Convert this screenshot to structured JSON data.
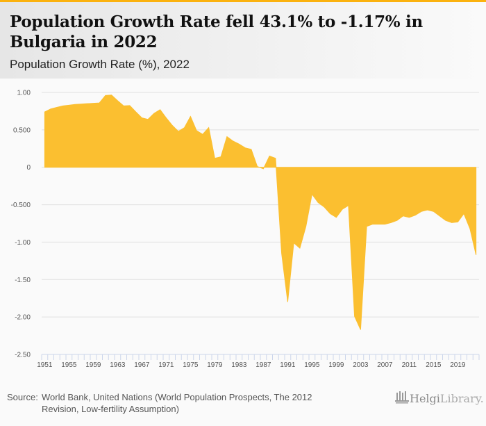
{
  "header": {
    "title": "Population Growth Rate fell 43.1% to -1.17% in Bulgaria in 2022",
    "subtitle": "Population Growth Rate (%), 2022"
  },
  "colors": {
    "accent": "#fbb20f",
    "area_fill": "#fbbf30",
    "grid": "#e0e0e0",
    "axis": "#ccd6eb"
  },
  "footer": {
    "source_label": "Source:",
    "source_text": "World Bank, United Nations (World Population Prospects, The 2012 Revision, Low-fertility Assumption)",
    "logo_helgi": "Helgi",
    "logo_library": "Library."
  },
  "chart_data": {
    "type": "area",
    "title": "Population Growth Rate fell 43.1% to -1.17% in Bulgaria in 2022",
    "subtitle": "Population Growth Rate (%), 2022",
    "xlabel": "",
    "ylabel": "",
    "ylim": [
      -2.5,
      1.0
    ],
    "yticks": [
      1.0,
      0.5,
      0,
      -0.5,
      -1.0,
      -1.5,
      -2.0,
      -2.5
    ],
    "ytick_labels": [
      "1.00",
      "0.500",
      "0",
      "-0.500",
      "-1.00",
      "-1.50",
      "-2.00",
      "-2.50"
    ],
    "xtick_labels": [
      "1951",
      "1955",
      "1959",
      "1963",
      "1967",
      "1971",
      "1975",
      "1979",
      "1983",
      "1987",
      "1991",
      "1995",
      "1999",
      "2003",
      "2007",
      "2011",
      "2015",
      "2019"
    ],
    "grid": true,
    "legend": "none",
    "x": [
      1951,
      1952,
      1953,
      1954,
      1955,
      1956,
      1957,
      1958,
      1959,
      1960,
      1961,
      1962,
      1963,
      1964,
      1965,
      1966,
      1967,
      1968,
      1969,
      1970,
      1971,
      1972,
      1973,
      1974,
      1975,
      1976,
      1977,
      1978,
      1979,
      1980,
      1981,
      1982,
      1983,
      1984,
      1985,
      1986,
      1987,
      1988,
      1989,
      1990,
      1991,
      1992,
      1993,
      1994,
      1995,
      1996,
      1997,
      1998,
      1999,
      2000,
      2001,
      2002,
      2003,
      2004,
      2005,
      2006,
      2007,
      2008,
      2009,
      2010,
      2011,
      2012,
      2013,
      2014,
      2015,
      2016,
      2017,
      2018,
      2019,
      2020,
      2021,
      2022
    ],
    "series": [
      {
        "name": "Population Growth Rate (%)",
        "values": [
          0.74,
          0.78,
          0.8,
          0.82,
          0.83,
          0.84,
          0.845,
          0.85,
          0.855,
          0.86,
          0.96,
          0.965,
          0.89,
          0.82,
          0.825,
          0.74,
          0.66,
          0.64,
          0.72,
          0.77,
          0.66,
          0.56,
          0.48,
          0.53,
          0.68,
          0.49,
          0.44,
          0.53,
          0.12,
          0.14,
          0.41,
          0.35,
          0.31,
          0.26,
          0.24,
          0.01,
          -0.02,
          0.15,
          0.12,
          -1.15,
          -1.8,
          -1.01,
          -1.08,
          -0.79,
          -0.36,
          -0.47,
          -0.53,
          -0.62,
          -0.67,
          -0.56,
          -0.51,
          -1.99,
          -2.17,
          -0.79,
          -0.76,
          -0.76,
          -0.76,
          -0.74,
          -0.71,
          -0.65,
          -0.67,
          -0.64,
          -0.59,
          -0.57,
          -0.59,
          -0.65,
          -0.71,
          -0.74,
          -0.73,
          -0.62,
          -0.82,
          -1.17
        ]
      }
    ]
  }
}
